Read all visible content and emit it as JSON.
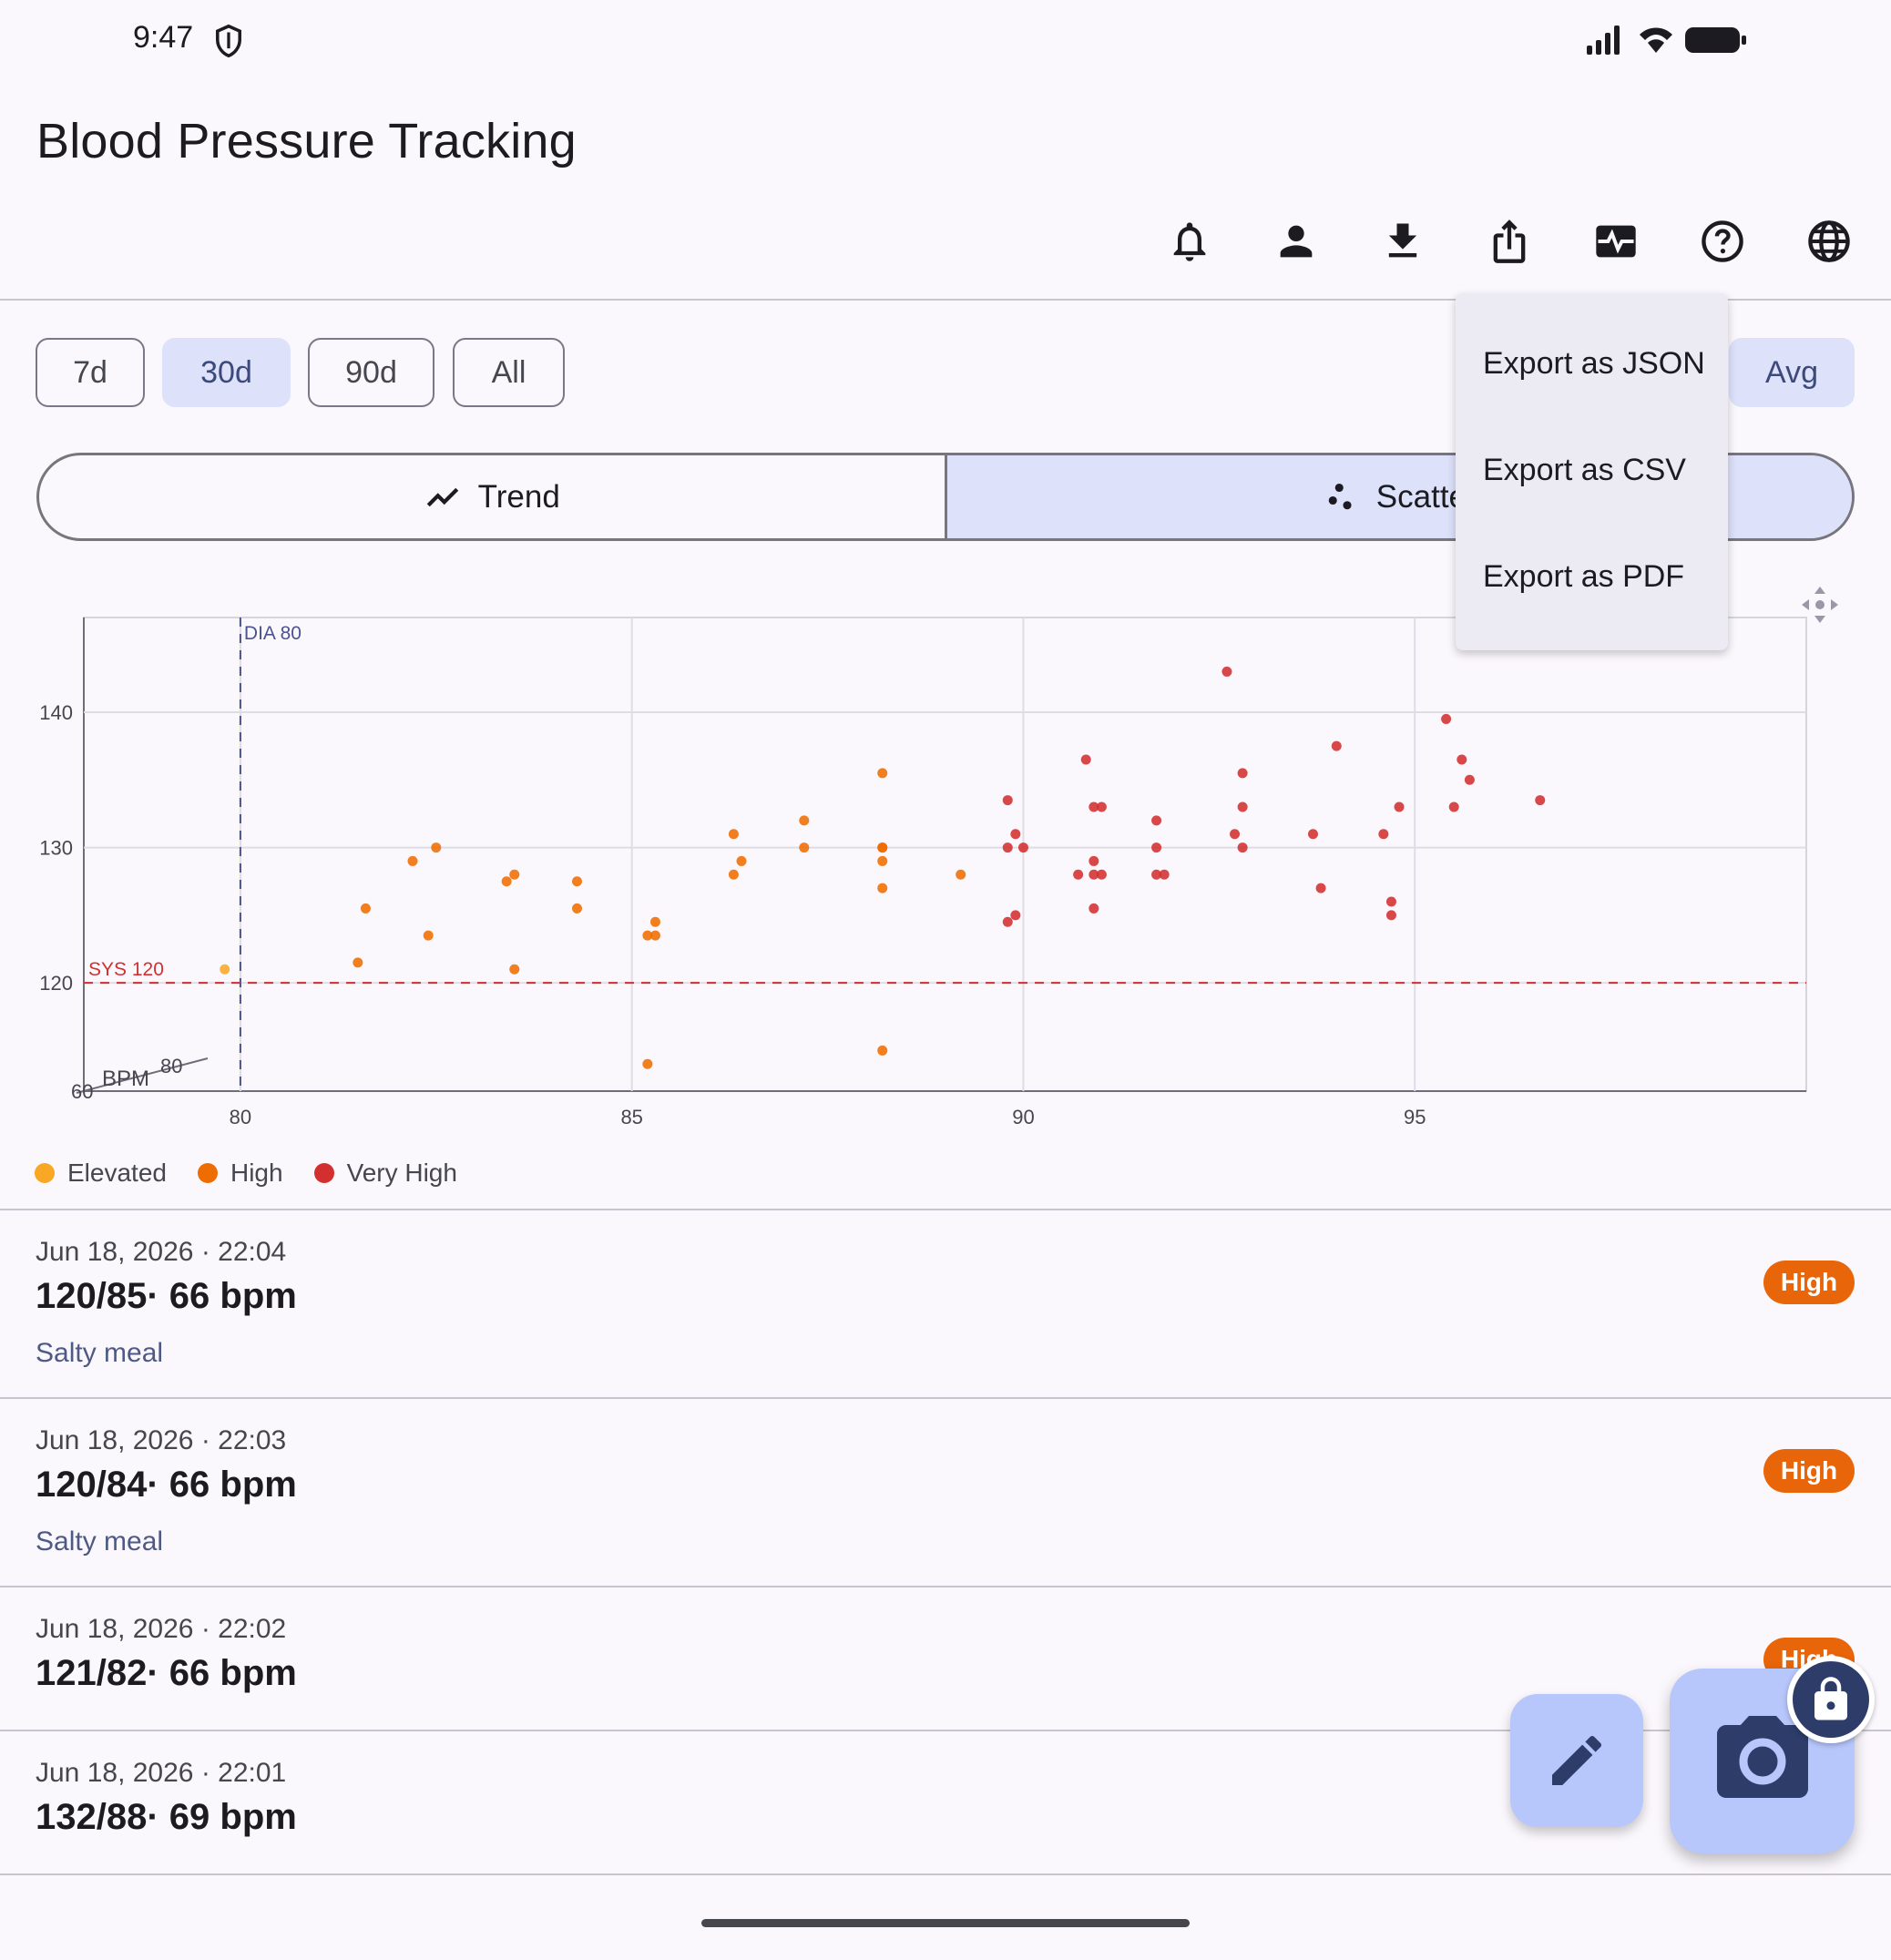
{
  "status_bar": {
    "time": "9:47"
  },
  "app_bar": {
    "title": "Blood Pressure Tracking",
    "actions": [
      "bell-icon",
      "person-icon",
      "download-icon",
      "share-icon",
      "heart-monitor-icon",
      "help-icon",
      "globe-icon"
    ]
  },
  "range_chips": {
    "items": [
      {
        "label": "7d",
        "selected": false
      },
      {
        "label": "30d",
        "selected": true
      },
      {
        "label": "90d",
        "selected": false
      },
      {
        "label": "All",
        "selected": false
      }
    ],
    "avg_label": "Avg"
  },
  "view_toggle": {
    "trend_label": "Trend",
    "scatter_label": "Scatter",
    "selected": "scatter"
  },
  "export_menu": {
    "items": [
      "Export as JSON",
      "Export as CSV",
      "Export as PDF"
    ]
  },
  "chart_data": {
    "type": "scatter",
    "x_ticks": [
      "80",
      "85",
      "90",
      "95"
    ],
    "y_ticks": [
      "120",
      "130",
      "140"
    ],
    "xlim": [
      78,
      100
    ],
    "ylim": [
      112,
      147
    ],
    "reference_lines": [
      {
        "label": "DIA 80",
        "axis": "x",
        "value": 80,
        "color": "#4b5290"
      },
      {
        "label": "SYS 120",
        "axis": "y",
        "value": 120,
        "color": "#d32f2f"
      }
    ],
    "bpm_axis": {
      "label": "BPM",
      "ticks": [
        "60",
        "80"
      ]
    },
    "grid": true,
    "series": [
      {
        "name": "Elevated",
        "color": "#f9a825",
        "points": [
          [
            79.8,
            121.0
          ]
        ]
      },
      {
        "name": "High",
        "color": "#ef6c00",
        "points": [
          [
            81.5,
            121.5
          ],
          [
            81.6,
            125.5
          ],
          [
            82.2,
            129.0
          ],
          [
            82.4,
            123.5
          ],
          [
            82.5,
            130.0
          ],
          [
            83.4,
            127.5
          ],
          [
            83.5,
            128.0
          ],
          [
            83.5,
            121.0
          ],
          [
            84.3,
            127.5
          ],
          [
            84.3,
            125.5
          ],
          [
            85.2,
            123.5
          ],
          [
            85.3,
            124.5
          ],
          [
            85.2,
            114.0
          ],
          [
            85.3,
            123.5
          ],
          [
            86.3,
            128.0
          ],
          [
            86.3,
            131.0
          ],
          [
            86.4,
            129.0
          ],
          [
            87.2,
            132.0
          ],
          [
            87.2,
            130.0
          ],
          [
            88.2,
            135.5
          ],
          [
            88.2,
            130.0
          ],
          [
            88.2,
            129.0
          ],
          [
            88.2,
            127.0
          ],
          [
            88.2,
            130.0
          ],
          [
            88.2,
            115.0
          ],
          [
            89.2,
            128.0
          ]
        ]
      },
      {
        "name": "Very High",
        "color": "#d32f2f",
        "points": [
          [
            89.8,
            133.5
          ],
          [
            89.8,
            130.0
          ],
          [
            89.9,
            131.0
          ],
          [
            89.9,
            125.0
          ],
          [
            89.8,
            124.5
          ],
          [
            90.0,
            130.0
          ],
          [
            90.8,
            136.5
          ],
          [
            90.9,
            133.0
          ],
          [
            90.9,
            129.0
          ],
          [
            90.7,
            128.0
          ],
          [
            90.9,
            128.0
          ],
          [
            91.0,
            133.0
          ],
          [
            91.0,
            128.0
          ],
          [
            90.9,
            125.5
          ],
          [
            91.7,
            132.0
          ],
          [
            91.7,
            130.0
          ],
          [
            91.7,
            128.0
          ],
          [
            91.8,
            128.0
          ],
          [
            92.6,
            143.0
          ],
          [
            92.7,
            131.0
          ],
          [
            92.8,
            135.5
          ],
          [
            92.8,
            133.0
          ],
          [
            92.8,
            130.0
          ],
          [
            93.7,
            131.0
          ],
          [
            93.8,
            127.0
          ],
          [
            94.0,
            137.5
          ],
          [
            94.6,
            131.0
          ],
          [
            94.7,
            126.0
          ],
          [
            94.7,
            125.0
          ],
          [
            94.8,
            133.0
          ],
          [
            95.4,
            139.5
          ],
          [
            95.5,
            133.0
          ],
          [
            95.6,
            136.5
          ],
          [
            95.7,
            135.0
          ],
          [
            96.6,
            133.5
          ]
        ]
      }
    ]
  },
  "legend": [
    {
      "label": "Elevated",
      "color": "#f9a825"
    },
    {
      "label": "High",
      "color": "#ef6c00"
    },
    {
      "label": "Very High",
      "color": "#d32f2f"
    }
  ],
  "readings": [
    {
      "date": "Jun 18, 2026 · 22:04",
      "value": "120/85· 66 bpm",
      "note": "Salty meal",
      "badge": "High"
    },
    {
      "date": "Jun 18, 2026 · 22:03",
      "value": "120/84· 66 bpm",
      "note": "Salty meal",
      "badge": "High"
    },
    {
      "date": "Jun 18, 2026 · 22:02",
      "value": "121/82· 66 bpm",
      "note": "",
      "badge": "High"
    },
    {
      "date": "Jun 18, 2026 · 22:01",
      "value": "132/88· 69 bpm",
      "note": "",
      "badge": ""
    }
  ],
  "colors": {
    "accent": "#dde1fa",
    "fab": "#b7c6fb",
    "badge_high": "#e8650a",
    "fab_icon": "#2d3c69"
  }
}
